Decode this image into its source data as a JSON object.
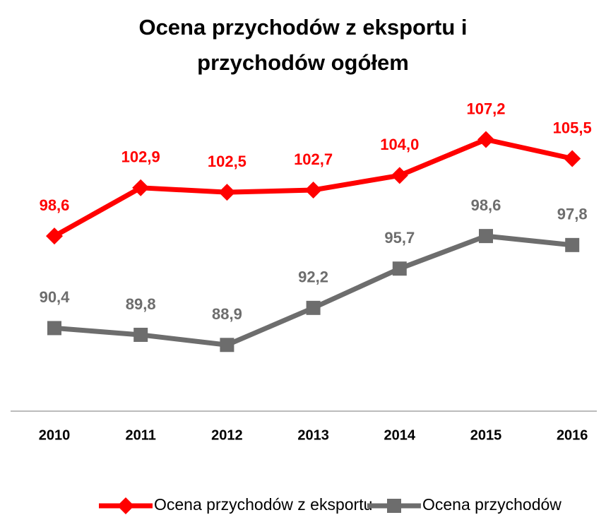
{
  "chart_data": {
    "type": "line",
    "title": "Ocena przychodów z eksportu i przychodów ogółem",
    "categories": [
      "2010",
      "2011",
      "2012",
      "2013",
      "2014",
      "2015",
      "2016"
    ],
    "series": [
      {
        "name": "Ocena przychodów z eksportu",
        "color": "#ff0000",
        "marker": "diamond",
        "values": [
          98.6,
          102.9,
          102.5,
          102.7,
          104.0,
          107.2,
          105.5
        ],
        "value_labels": [
          "98,6",
          "102,9",
          "102,5",
          "102,7",
          "104,0",
          "107,2",
          "105,5"
        ]
      },
      {
        "name": "Ocena przychodów",
        "color": "#6d6d6d",
        "marker": "square",
        "values": [
          90.4,
          89.8,
          88.9,
          92.2,
          95.7,
          98.6,
          97.8
        ],
        "value_labels": [
          "90,4",
          "89,8",
          "88,9",
          "92,2",
          "95,7",
          "98,6",
          "97,8"
        ]
      }
    ],
    "ylim": [
      83,
      110
    ],
    "legend": "bottom"
  }
}
